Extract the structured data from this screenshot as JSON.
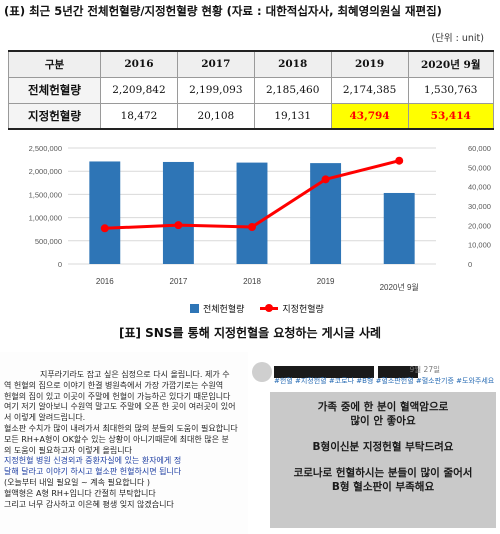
{
  "header": {
    "title": "(표) 최근 5년간 전체헌혈량/지정헌혈량 현황 (자료 : 대한적십자사, 최혜영의원실 재편집)",
    "unit": "(단위 : unit)"
  },
  "table": {
    "corner": "구분",
    "columns": [
      "2016",
      "2017",
      "2018",
      "2019",
      "2020년 9월"
    ],
    "rows": [
      {
        "label": "전체헌혈량",
        "values": [
          "2,209,842",
          "2,199,093",
          "2,185,460",
          "2,174,385",
          "1,530,763"
        ]
      },
      {
        "label": "지정헌혈량",
        "values": [
          "18,472",
          "20,108",
          "19,131",
          "43,794",
          "53,414"
        ]
      }
    ],
    "highlight_color": "#ffff00",
    "highlight_text_color": "#ff0000"
  },
  "chart_data": {
    "type": "bar",
    "categories": [
      "2016",
      "2017",
      "2018",
      "2019",
      "2020년 9월"
    ],
    "series": [
      {
        "name": "전체헌혈량",
        "kind": "bar",
        "axis": "left",
        "color": "#2e75b6",
        "values": [
          2209842,
          2199093,
          2185460,
          2174385,
          1530763
        ]
      },
      {
        "name": "지정헌혈량",
        "kind": "line",
        "axis": "right",
        "color": "#ff0000",
        "values": [
          18472,
          20108,
          19131,
          43794,
          53414
        ]
      }
    ],
    "ylim_left": [
      0,
      2500000
    ],
    "ylim_right": [
      0,
      60000
    ],
    "yticks_left": [
      "0",
      "500,000",
      "1,000,000",
      "1,500,000",
      "2,000,000",
      "2,500,000"
    ],
    "yticks_right": [
      "0",
      "10,000",
      "20,000",
      "30,000",
      "40,000",
      "50,000",
      "60,000"
    ],
    "grid": true,
    "legend_position": "bottom"
  },
  "subtitle": "[표] SNS를 통해 지정헌혈을 요청하는 게시글 사례",
  "post_left": {
    "lines": [
      "지푸라기라도 잡고 싶은 심정으로 다시 올립니다. 제가 수",
      "역 헌혈의 집으로 이야기 한결 병원측에서 가장 가깝기로는 수원역",
      "헌혈의 집이 있고 이곳이 주말에 헌혈이 가능하곤 있다기 때문입니다",
      "여기 저기 알아보니 수원역 말고도 주말에 오픈 한 곳이 여러곳이 있어",
      "서 이렇게 알려드립니다.",
      "혈소판 수치가 많이 내려가서 최대한의 많의 분들의 도움이 필요합니다",
      "모든 RH+A형이 OK할수 있는 상황이 아니기때문에 최대한 많은 분",
      "의 도움이 필요하고자 이렇게 올립니다",
      "지정헌혈          병원 신경외과 중환자실에 있는          환자에게 정",
      "달해 달라고 이야기 하시고 혈소판 헌혈하시면 됩니다",
      "(오늘부터 내일 필요일 ~ 계속 필요합니다 )",
      "혈액형은 A형 RH+입니다 간절히 부탁합니다",
      "그리고 너무 감사하고 이은혜 평생 잊지 않겠습니다"
    ]
  },
  "post_right": {
    "date": "9월 27일",
    "tags": "#헌혈 #지정헌혈 #코로나 #B형 #혈소판헌혈 #혈소판기증 #도와주세요",
    "card_lines": [
      "가족 중에 한 분이 혈액암으로",
      "많이 안 좋아요",
      "",
      "B형이신분 지정헌혈 부탁드려요",
      "",
      "코로나로 헌혈하시는 분들이 많이 줄어서",
      "B형 혈소판이 부족해요"
    ]
  }
}
